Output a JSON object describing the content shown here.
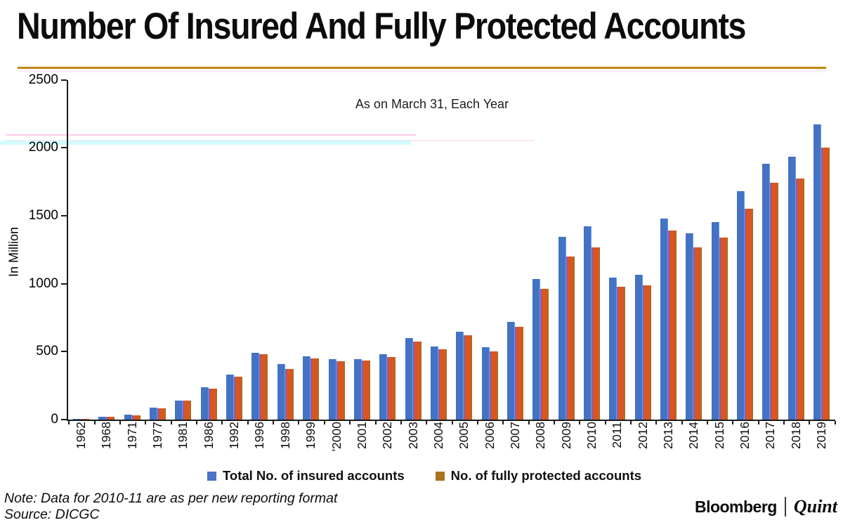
{
  "chart_data": {
    "type": "bar",
    "title": "Number Of Insured And Fully Protected Accounts",
    "subtitle": "As on March 31, Each Year",
    "ylabel": "In Million",
    "ylim": [
      0,
      2500
    ],
    "yticks": [
      0,
      500,
      1000,
      1500,
      2000,
      2500
    ],
    "grid": false,
    "legend_position": "bottom",
    "categories": [
      "1962",
      "1968",
      "1971",
      "1977",
      "1981",
      "1986",
      "1992",
      "1996",
      "1998",
      "1999",
      "'2000",
      "2001",
      "2002",
      "2003",
      "2004",
      "2005",
      "2006",
      "2007",
      "2008",
      "2009",
      "2010",
      "2011",
      "2012",
      "2013",
      "2014",
      "2015",
      "2016",
      "2017",
      "2018",
      "2019"
    ],
    "series": [
      {
        "name": "Total No. of insured accounts",
        "color": "#4472c4",
        "legend_color": "#4d72c6",
        "values": [
          3,
          20,
          35,
          88,
          142,
          237,
          330,
          489,
          410,
          463,
          443,
          445,
          481,
          599,
          540,
          644,
          532,
          717,
          1034,
          1345,
          1421,
          1046,
          1067,
          1478,
          1368,
          1452,
          1678,
          1880,
          1936,
          2172
        ]
      },
      {
        "name": "No. of fully protected accounts",
        "color": "#d9561f",
        "legend_color": "#a9741e",
        "values": [
          3,
          19,
          33,
          85,
          140,
          230,
          315,
          480,
          370,
          450,
          430,
          432,
          462,
          575,
          515,
          620,
          500,
          685,
          960,
          1200,
          1265,
          975,
          990,
          1390,
          1265,
          1340,
          1550,
          1740,
          1775,
          2000
        ]
      }
    ]
  },
  "footer": {
    "note": "Note: Data for 2010-11 are as per new reporting format",
    "source": "Source: DICGC",
    "brand": {
      "bloomberg": "Bloomberg",
      "quint": "Quint"
    }
  }
}
